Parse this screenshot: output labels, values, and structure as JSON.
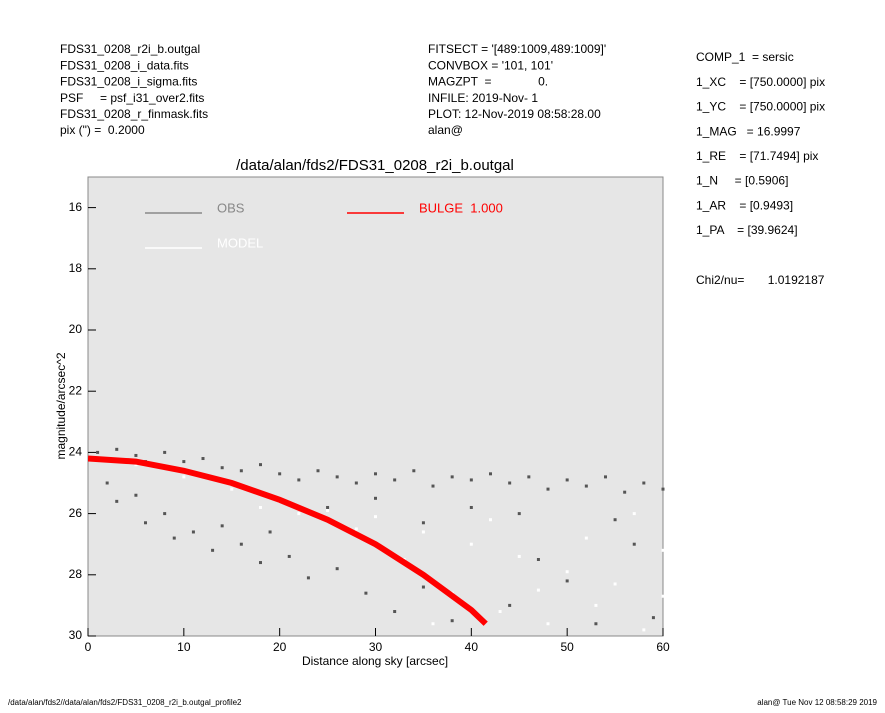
{
  "header": {
    "left": [
      "FDS31_0208_r2i_b.outgal",
      "FDS31_0208_i_data.fits",
      "FDS31_0208_i_sigma.fits",
      "PSF     = psf_i31_over2.fits",
      "FDS31_0208_r_finmask.fits",
      "pix (\") =  0.2000"
    ],
    "middle": [
      "FITSECT = '[489:1009,489:1009]'",
      "CONVBOX = '101, 101'",
      "MAGZPT  =              0.",
      "INFILE: 2019-Nov- 1",
      "PLOT: 12-Nov-2019 08:58:28.00",
      "alan@"
    ],
    "right": [
      "COMP_1  = sersic",
      "1_XC    = [750.0000] pix",
      "1_YC    = [750.0000] pix",
      "1_MAG   = 16.9997",
      "1_RE    = [71.7494] pix",
      "1_N     = [0.5906]",
      "1_AR    = [0.9493]",
      "1_PA    = [39.9624]"
    ],
    "chi2": "Chi2/nu=       1.0192187"
  },
  "footer": {
    "left": "/data/alan/fds2//data/alan/fds2/FDS31_0208_r2i_b.outgal_profile2",
    "right": "alan@  Tue Nov 12 08:58:29 2019"
  },
  "chart_data": {
    "type": "scatter",
    "title": "/data/alan/fds2/FDS31_0208_r2i_b.outgal",
    "x_label": "Distance along sky [arcsec]",
    "y_label": "magnitude/arcsec^2",
    "xlim": [
      0,
      60
    ],
    "xticks": [
      0,
      10,
      20,
      30,
      40,
      50,
      60
    ],
    "ylim": [
      30,
      15
    ],
    "yticks": [
      16,
      18,
      20,
      22,
      24,
      26,
      28,
      30
    ],
    "background": "#e6e6e6",
    "series": [
      {
        "name": "OBS",
        "color": "#555555",
        "x": [
          1,
          2,
          3,
          5,
          6,
          8,
          10,
          12,
          14,
          16,
          18,
          20,
          22,
          24,
          26,
          28,
          30,
          32,
          34,
          36,
          38,
          40,
          42,
          44,
          46,
          48,
          50,
          52,
          54,
          56,
          58,
          60,
          2,
          3,
          5,
          6,
          8,
          9,
          11,
          13,
          14,
          16,
          18,
          19,
          21,
          23,
          26,
          29,
          32,
          35,
          38,
          44,
          47,
          50,
          53,
          57,
          59,
          55,
          45,
          40,
          35,
          25,
          30
        ],
        "values": [
          24.0,
          24.2,
          23.9,
          24.1,
          24.3,
          24.0,
          24.3,
          24.2,
          24.5,
          24.6,
          24.4,
          24.7,
          24.9,
          24.6,
          24.8,
          25.0,
          24.7,
          24.9,
          24.6,
          25.1,
          24.8,
          24.9,
          24.7,
          25.0,
          24.8,
          25.2,
          24.9,
          25.1,
          24.8,
          25.3,
          25.0,
          25.2,
          25.0,
          25.6,
          25.4,
          26.3,
          26.0,
          26.8,
          26.6,
          27.2,
          26.4,
          27.0,
          27.6,
          26.6,
          27.4,
          28.1,
          27.8,
          28.6,
          29.2,
          28.4,
          29.5,
          29.0,
          27.5,
          28.2,
          29.6,
          27.0,
          29.4,
          26.2,
          26.0,
          25.8,
          26.3,
          25.8,
          25.5
        ]
      },
      {
        "name": "MODEL",
        "color": "#ffffff",
        "x": [
          5,
          10,
          15,
          20,
          25,
          30,
          35,
          40,
          45,
          50,
          55,
          60,
          33,
          38,
          43,
          48,
          53,
          58,
          28,
          22,
          18,
          42,
          52,
          57,
          47,
          36,
          60
        ],
        "values": [
          24.4,
          24.8,
          25.2,
          25.6,
          25.9,
          26.1,
          26.6,
          27.0,
          27.4,
          27.9,
          28.3,
          28.7,
          27.5,
          28.6,
          29.2,
          29.6,
          29.0,
          29.8,
          26.5,
          26.0,
          25.8,
          26.2,
          26.8,
          26.0,
          28.5,
          29.6,
          27.2
        ]
      },
      {
        "name": "BULGE  1.000",
        "color": "#ff0000",
        "line": true,
        "x": [
          0,
          5,
          10,
          15,
          20,
          25,
          30,
          35,
          40,
          41.5
        ],
        "values": [
          24.2,
          24.3,
          24.6,
          25.0,
          25.55,
          26.2,
          27.0,
          28.0,
          29.15,
          29.6
        ]
      }
    ]
  }
}
